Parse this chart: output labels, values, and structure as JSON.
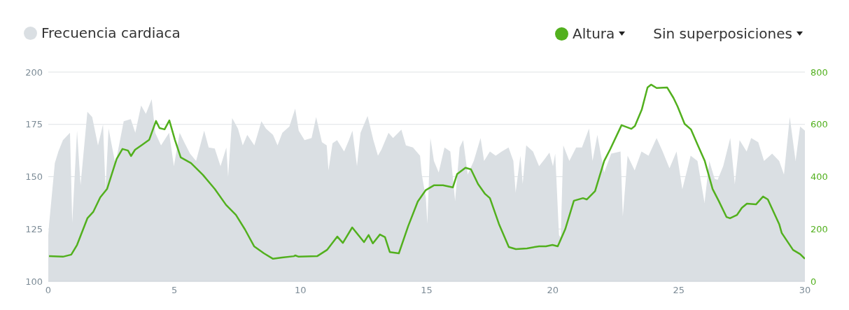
{
  "chart_data": {
    "type": "area",
    "legend": "top",
    "grid": "y",
    "marker": "none",
    "line_style": "solid",
    "annotations": [
      "Sin superposiciones"
    ],
    "xlim": [
      0,
      30
    ],
    "xticks": [
      0,
      5,
      10,
      15,
      20,
      25,
      30
    ],
    "ylim": [
      100,
      200
    ],
    "yticks": [
      100,
      125,
      150,
      175,
      200
    ],
    "y2lim": [
      0,
      800
    ],
    "y2ticks": [
      0,
      200,
      400,
      600,
      800
    ],
    "series": [
      {
        "name": "Frecuencia cardiaca",
        "color": "#dadfe3",
        "x": [
          0,
          0.03,
          0.26,
          0.4,
          0.58,
          0.86,
          0.95,
          1.14,
          1.28,
          1.55,
          1.74,
          1.97,
          2.17,
          2.27,
          2.39,
          2.66,
          2.99,
          3.27,
          3.45,
          3.68,
          3.87,
          4.1,
          4.24,
          4.47,
          4.79,
          4.98,
          5.21,
          5.39,
          5.62,
          5.86,
          6.18,
          6.36,
          6.6,
          6.83,
          7.06,
          7.13,
          7.29,
          7.52,
          7.71,
          7.89,
          8.17,
          8.45,
          8.63,
          8.91,
          9.09,
          9.28,
          9.56,
          9.79,
          9.93,
          10.16,
          10.44,
          10.62,
          10.85,
          11.04,
          11.11,
          11.27,
          11.45,
          11.73,
          11.92,
          12.06,
          12.24,
          12.38,
          12.66,
          12.89,
          13.07,
          13.21,
          13.49,
          13.67,
          14.0,
          14.18,
          14.46,
          14.74,
          14.81,
          14.97,
          15.03,
          15.15,
          15.29,
          15.48,
          15.71,
          15.94,
          16.13,
          16.31,
          16.45,
          16.63,
          16.87,
          17.14,
          17.28,
          17.51,
          17.74,
          17.98,
          18.25,
          18.44,
          18.53,
          18.72,
          18.81,
          18.95,
          19.22,
          19.46,
          19.69,
          19.87,
          20.01,
          20.1,
          20.25,
          20.32,
          20.42,
          20.66,
          20.93,
          21.16,
          21.44,
          21.58,
          21.77,
          22.04,
          22.32,
          22.69,
          22.78,
          22.97,
          23.25,
          23.52,
          23.8,
          24.12,
          24.36,
          24.63,
          24.91,
          25.14,
          25.47,
          25.74,
          26.02,
          26.21,
          26.42,
          26.54,
          26.76,
          27.04,
          27.22,
          27.41,
          27.69,
          27.87,
          28.15,
          28.38,
          28.7,
          28.98,
          29.17,
          29.4,
          29.63,
          29.81,
          30
        ],
        "values": [
          122,
          127,
          156.5,
          162,
          167.5,
          171,
          128,
          172,
          146,
          181,
          178.5,
          165,
          175,
          144,
          173,
          156,
          176.5,
          177.5,
          171,
          184,
          180,
          187,
          171,
          165,
          171,
          155,
          171,
          166.5,
          161,
          157.5,
          172,
          164,
          163.5,
          155,
          164,
          150,
          178,
          173,
          165,
          170,
          165,
          176.5,
          173,
          170,
          165,
          171,
          174,
          182.5,
          172,
          167.5,
          168.5,
          178.5,
          166.5,
          165,
          153,
          166,
          167.5,
          162,
          167.5,
          172,
          155,
          171,
          179,
          167.5,
          160,
          163,
          171,
          168.5,
          172.5,
          165,
          164,
          160,
          151,
          140,
          127.5,
          168.5,
          157.5,
          152,
          164,
          162,
          138.5,
          164,
          167.5,
          151,
          157.5,
          168.5,
          157.5,
          162,
          160,
          162,
          164,
          157.5,
          142.5,
          160,
          146.5,
          165,
          162,
          155,
          158.5,
          161.5,
          155,
          161,
          122,
          121,
          165,
          157.5,
          164,
          164,
          173,
          157.5,
          170,
          152,
          161,
          162,
          131,
          160,
          153,
          162,
          160,
          168.5,
          162,
          154,
          162,
          144,
          160,
          157.5,
          137.5,
          157.5,
          149,
          148.5,
          155,
          168.5,
          146.5,
          167.5,
          162,
          168.5,
          166.5,
          157.5,
          161,
          157.5,
          151,
          178.5,
          157.5,
          174,
          172
        ]
      },
      {
        "name": "Altura",
        "type": "line",
        "axis": "y2",
        "color": "#52b01e",
        "x": [
          0.03,
          0.58,
          0.91,
          1.14,
          1.55,
          1.78,
          2.06,
          2.33,
          2.71,
          2.94,
          3.16,
          3.28,
          3.44,
          3.72,
          4.0,
          4.27,
          4.41,
          4.61,
          4.8,
          5.02,
          5.25,
          5.66,
          6.13,
          6.6,
          7.05,
          7.44,
          7.8,
          8.16,
          8.55,
          8.91,
          9.27,
          9.74,
          9.79,
          9.93,
          10.66,
          11.05,
          11.46,
          11.68,
          12.05,
          12.52,
          12.7,
          12.87,
          13.15,
          13.35,
          13.54,
          13.9,
          14.27,
          14.65,
          14.96,
          15.29,
          15.65,
          16.04,
          16.21,
          16.54,
          16.76,
          17.04,
          17.32,
          17.51,
          17.87,
          18.26,
          18.54,
          18.98,
          19.46,
          19.73,
          19.99,
          20.2,
          20.5,
          20.84,
          21.2,
          21.35,
          21.68,
          22.04,
          22.28,
          22.73,
          23.12,
          23.26,
          23.53,
          23.76,
          23.9,
          24.12,
          24.54,
          24.79,
          24.95,
          25.23,
          25.48,
          25.76,
          26.03,
          26.34,
          26.58,
          26.89,
          27.03,
          27.31,
          27.5,
          27.7,
          28.06,
          28.34,
          28.53,
          28.98,
          29.08,
          29.53,
          29.81,
          30
        ],
        "values": [
          96,
          94,
          102,
          139,
          241,
          265,
          321,
          353,
          468,
          506,
          500,
          479,
          503,
          522,
          541,
          613,
          586,
          581,
          615,
          541,
          474,
          452,
          407,
          353,
          292,
          254,
          198,
          134,
          107,
          86,
          91,
          96,
          99,
          94,
          96,
          120,
          171,
          147,
          206,
          150,
          177,
          145,
          179,
          169,
          112,
          107,
          211,
          305,
          348,
          367,
          367,
          359,
          410,
          434,
          428,
          372,
          334,
          318,
          219,
          131,
          123,
          126,
          134,
          134,
          139,
          134,
          200,
          308,
          318,
          313,
          345,
          460,
          505,
          597,
          583,
          594,
          656,
          741,
          752,
          739,
          741,
          701,
          669,
          602,
          581,
          519,
          460,
          353,
          308,
          246,
          241,
          254,
          281,
          297,
          294,
          324,
          313,
          219,
          185,
          120,
          104,
          86
        ]
      }
    ]
  }
}
